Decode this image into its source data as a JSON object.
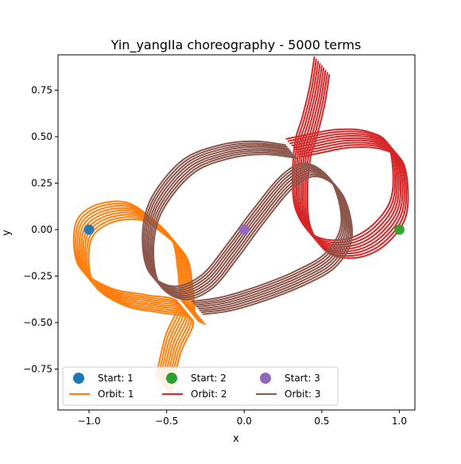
{
  "chart_data": {
    "type": "line",
    "title": "Yin_yangIIa choreography - 5000 terms",
    "xlabel": "x",
    "ylabel": "y",
    "xlim": [
      -1.2,
      1.1
    ],
    "ylim": [
      -0.97,
      0.94
    ],
    "xticks": [
      -1.0,
      -0.5,
      0.0,
      0.5,
      1.0
    ],
    "xtick_labels": [
      "−1.0",
      "−0.5",
      "0.0",
      "0.5",
      "1.0"
    ],
    "yticks": [
      -0.75,
      -0.5,
      -0.25,
      0.0,
      0.25,
      0.5,
      0.75
    ],
    "ytick_labels": [
      "−0.75",
      "−0.50",
      "−0.25",
      "0.00",
      "0.25",
      "0.50",
      "0.75"
    ],
    "grid": false,
    "legend_position": "lower-left",
    "start_points": [
      {
        "name": "Start: 1",
        "x": -1.0,
        "y": 0.0,
        "color": "#1f77b4"
      },
      {
        "name": "Start: 2",
        "x": 1.0,
        "y": 0.0,
        "color": "#2ca02c"
      },
      {
        "name": "Start: 3",
        "x": 0.0,
        "y": 0.0,
        "color": "#9467bd"
      }
    ],
    "orbits": [
      {
        "name": "Orbit: 1",
        "color": "#ff7f0e"
      },
      {
        "name": "Orbit: 2",
        "color": "#d62728"
      },
      {
        "name": "Orbit: 3",
        "color": "#8c564b"
      }
    ],
    "legend_order": [
      {
        "kind": "marker",
        "label": "Start: 1",
        "color": "#1f77b4"
      },
      {
        "kind": "marker",
        "label": "Start: 2",
        "color": "#2ca02c"
      },
      {
        "kind": "marker",
        "label": "Start: 3",
        "color": "#9467bd"
      },
      {
        "kind": "line",
        "label": "Orbit: 1",
        "color": "#ff7f0e"
      },
      {
        "kind": "line",
        "label": "Orbit: 2",
        "color": "#d62728"
      },
      {
        "kind": "line",
        "label": "Orbit: 3",
        "color": "#8c564b"
      }
    ]
  }
}
